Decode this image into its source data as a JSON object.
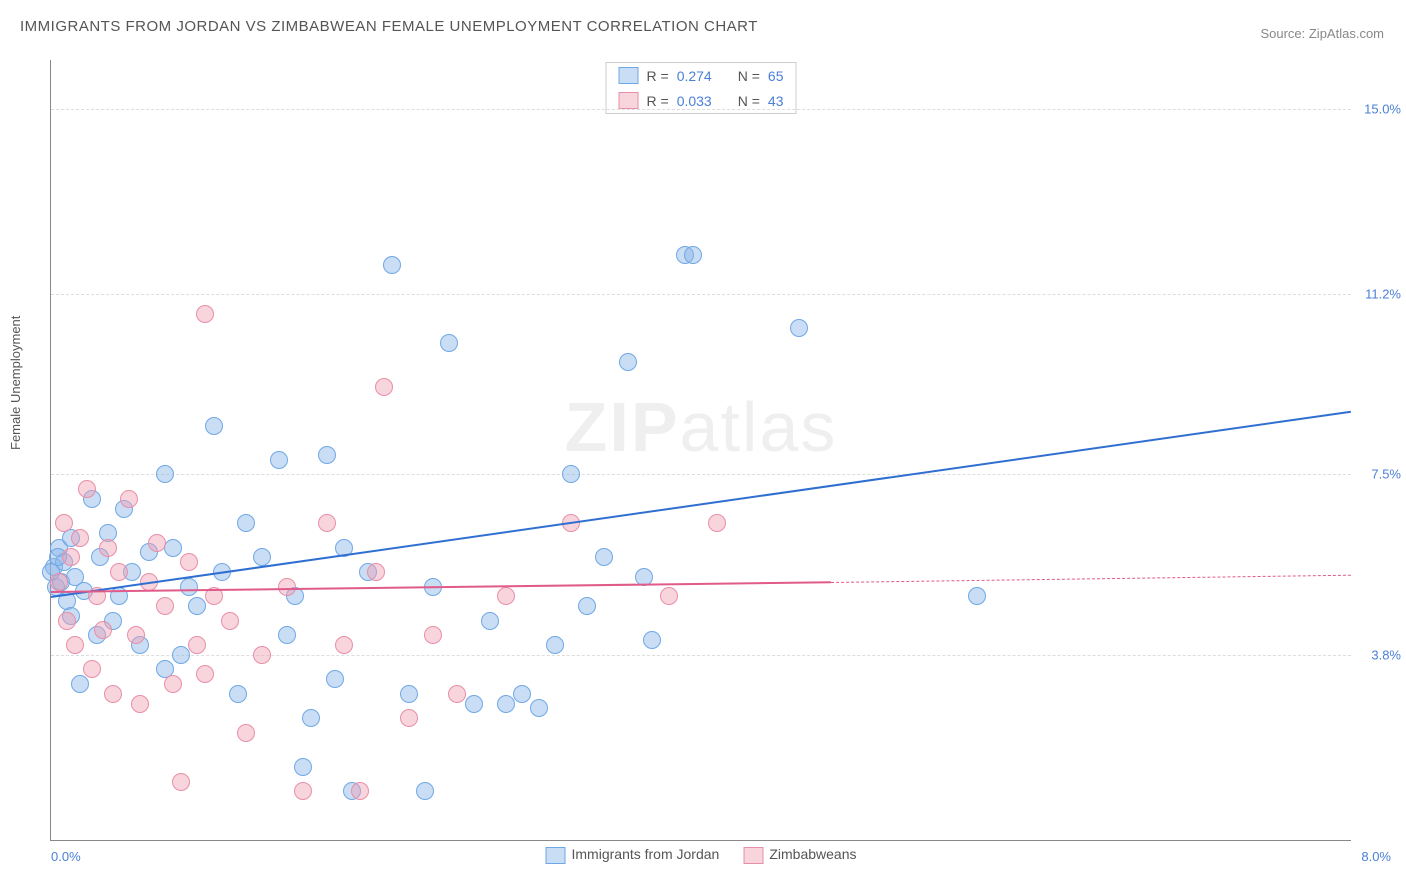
{
  "title": "IMMIGRANTS FROM JORDAN VS ZIMBABWEAN FEMALE UNEMPLOYMENT CORRELATION CHART",
  "source": "Source: ZipAtlas.com",
  "y_axis_label": "Female Unemployment",
  "watermark_left": "ZIP",
  "watermark_right": "atlas",
  "chart": {
    "type": "scatter",
    "xlim": [
      0.0,
      8.0
    ],
    "ylim": [
      0.0,
      16.0
    ],
    "y_ticks": [
      3.8,
      7.5,
      11.2,
      15.0
    ],
    "y_tick_labels": [
      "3.8%",
      "7.5%",
      "11.2%",
      "15.0%"
    ],
    "x_tick_left": "0.0%",
    "x_tick_right": "8.0%",
    "background_color": "#ffffff",
    "grid_color": "#dddddd",
    "axis_color": "#888888",
    "tick_label_color": "#4a7fd6",
    "series": [
      {
        "name": "Immigrants from Jordan",
        "marker_fill": "rgba(135,180,230,0.45)",
        "marker_stroke": "#6fa8e6",
        "marker_radius": 9,
        "trend_color": "#2f6fd1",
        "trend_start": [
          0.0,
          5.0
        ],
        "trend_end": [
          8.0,
          8.8
        ],
        "trend_dash_start": null,
        "R": "0.274",
        "N": "65",
        "points": [
          [
            0.02,
            5.6
          ],
          [
            0.03,
            5.2
          ],
          [
            0.05,
            6.0
          ],
          [
            0.06,
            5.3
          ],
          [
            0.08,
            5.7
          ],
          [
            0.1,
            4.9
          ],
          [
            0.12,
            6.2
          ],
          [
            0.15,
            5.4
          ],
          [
            0.18,
            3.2
          ],
          [
            0.2,
            5.1
          ],
          [
            0.25,
            7.0
          ],
          [
            0.28,
            4.2
          ],
          [
            0.3,
            5.8
          ],
          [
            0.35,
            6.3
          ],
          [
            0.38,
            4.5
          ],
          [
            0.42,
            5.0
          ],
          [
            0.45,
            6.8
          ],
          [
            0.5,
            5.5
          ],
          [
            0.55,
            4.0
          ],
          [
            0.6,
            5.9
          ],
          [
            0.7,
            7.5
          ],
          [
            0.7,
            3.5
          ],
          [
            0.75,
            6.0
          ],
          [
            0.85,
            5.2
          ],
          [
            0.9,
            4.8
          ],
          [
            1.0,
            8.5
          ],
          [
            1.05,
            5.5
          ],
          [
            1.15,
            3.0
          ],
          [
            1.2,
            6.5
          ],
          [
            1.3,
            5.8
          ],
          [
            1.4,
            7.8
          ],
          [
            1.45,
            4.2
          ],
          [
            1.5,
            5.0
          ],
          [
            1.55,
            1.5
          ],
          [
            1.6,
            2.5
          ],
          [
            1.7,
            7.9
          ],
          [
            1.75,
            3.3
          ],
          [
            1.8,
            6.0
          ],
          [
            1.85,
            1.0
          ],
          [
            1.95,
            5.5
          ],
          [
            2.1,
            11.8
          ],
          [
            2.2,
            3.0
          ],
          [
            2.3,
            1.0
          ],
          [
            2.35,
            5.2
          ],
          [
            2.45,
            10.2
          ],
          [
            2.6,
            2.8
          ],
          [
            2.7,
            4.5
          ],
          [
            2.8,
            2.8
          ],
          [
            2.9,
            3.0
          ],
          [
            3.0,
            2.7
          ],
          [
            3.1,
            4.0
          ],
          [
            3.2,
            7.5
          ],
          [
            3.3,
            4.8
          ],
          [
            3.4,
            5.8
          ],
          [
            3.55,
            9.8
          ],
          [
            3.65,
            5.4
          ],
          [
            3.7,
            4.1
          ],
          [
            3.9,
            12.0
          ],
          [
            3.95,
            12.0
          ],
          [
            4.6,
            10.5
          ],
          [
            5.7,
            5.0
          ],
          [
            0.0,
            5.5
          ],
          [
            0.04,
            5.8
          ],
          [
            0.12,
            4.6
          ],
          [
            0.8,
            3.8
          ]
        ]
      },
      {
        "name": "Zimbabweans",
        "marker_fill": "rgba(240,160,180,0.45)",
        "marker_stroke": "#e88fa8",
        "marker_radius": 9,
        "trend_color": "#e05a8a",
        "trend_start": [
          0.0,
          5.1
        ],
        "trend_end": [
          8.0,
          5.45
        ],
        "trend_dash_start": [
          4.8,
          5.3
        ],
        "R": "0.033",
        "N": "43",
        "points": [
          [
            0.05,
            5.3
          ],
          [
            0.08,
            6.5
          ],
          [
            0.1,
            4.5
          ],
          [
            0.12,
            5.8
          ],
          [
            0.15,
            4.0
          ],
          [
            0.18,
            6.2
          ],
          [
            0.22,
            7.2
          ],
          [
            0.25,
            3.5
          ],
          [
            0.28,
            5.0
          ],
          [
            0.32,
            4.3
          ],
          [
            0.35,
            6.0
          ],
          [
            0.38,
            3.0
          ],
          [
            0.42,
            5.5
          ],
          [
            0.48,
            7.0
          ],
          [
            0.52,
            4.2
          ],
          [
            0.55,
            2.8
          ],
          [
            0.6,
            5.3
          ],
          [
            0.65,
            6.1
          ],
          [
            0.7,
            4.8
          ],
          [
            0.75,
            3.2
          ],
          [
            0.8,
            1.2
          ],
          [
            0.85,
            5.7
          ],
          [
            0.9,
            4.0
          ],
          [
            0.95,
            3.4
          ],
          [
            1.0,
            5.0
          ],
          [
            0.95,
            10.8
          ],
          [
            1.1,
            4.5
          ],
          [
            1.2,
            2.2
          ],
          [
            1.3,
            3.8
          ],
          [
            1.45,
            5.2
          ],
          [
            1.55,
            1.0
          ],
          [
            1.7,
            6.5
          ],
          [
            1.8,
            4.0
          ],
          [
            1.9,
            1.0
          ],
          [
            2.0,
            5.5
          ],
          [
            2.05,
            9.3
          ],
          [
            2.2,
            2.5
          ],
          [
            2.35,
            4.2
          ],
          [
            2.5,
            3.0
          ],
          [
            2.8,
            5.0
          ],
          [
            3.2,
            6.5
          ],
          [
            3.8,
            5.0
          ],
          [
            4.1,
            6.5
          ]
        ]
      }
    ]
  },
  "legend_top": {
    "R_label": "R  =",
    "N_label": "N  ="
  },
  "legend_bottom": [
    {
      "label": "Immigrants from Jordan",
      "fill": "rgba(135,180,230,0.45)",
      "stroke": "#6fa8e6"
    },
    {
      "label": "Zimbabweans",
      "fill": "rgba(240,160,180,0.45)",
      "stroke": "#e88fa8"
    }
  ]
}
